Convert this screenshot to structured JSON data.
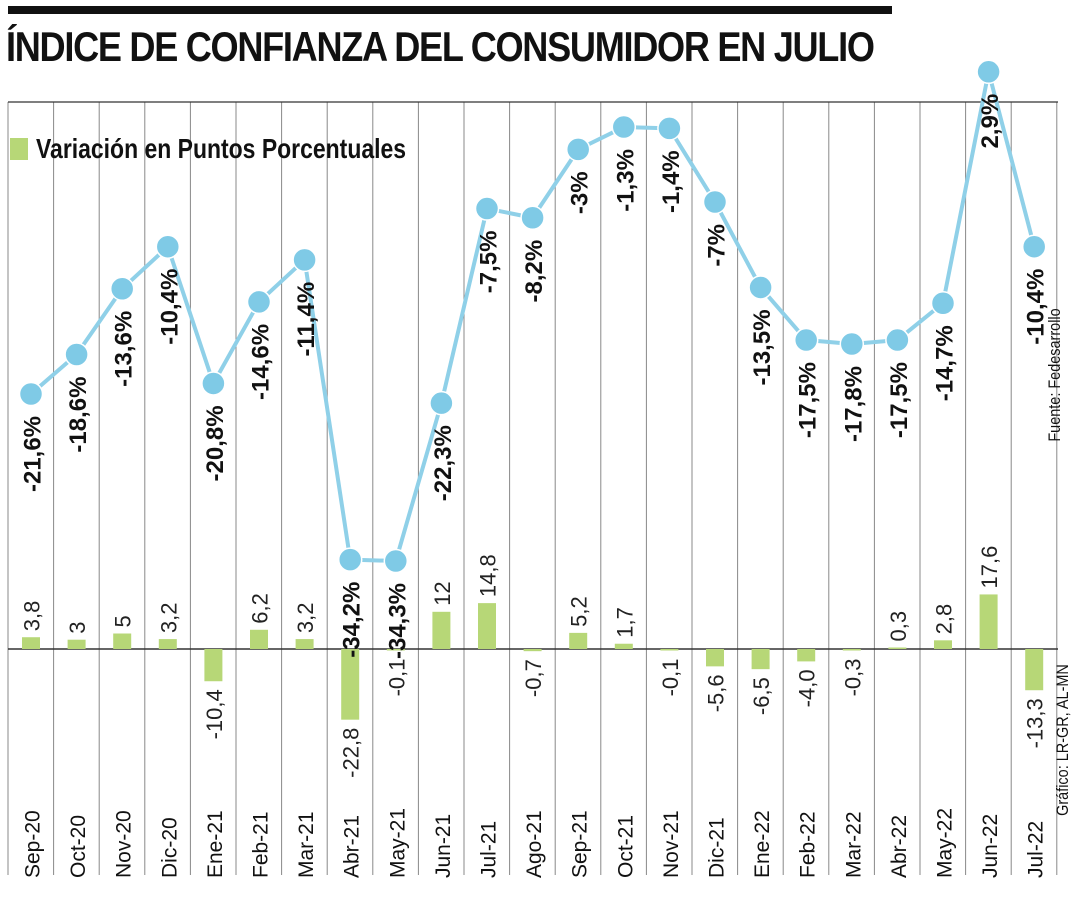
{
  "title": "ÍNDICE DE CONFIANZA DEL CONSUMIDOR EN JULIO",
  "legend": {
    "label": "Variación en Puntos Porcentuales",
    "color": "#b7d777"
  },
  "source": "Fuente: Fedesarrollo",
  "credit": "Gráfico: LR-GR, AL-MN",
  "colors": {
    "line": "#8fd0e8",
    "marker": "#7fcae6",
    "bar": "#b7d777",
    "grid": "#888888"
  },
  "chart_data": {
    "type": "line+bar",
    "title": "ÍNDICE DE CONFIANZA DEL CONSUMIDOR EN JULIO",
    "categories": [
      "Sep-20",
      "Oct-20",
      "Nov-20",
      "Dic-20",
      "Ene-21",
      "Feb-21",
      "Mar-21",
      "Abr-21",
      "May-21",
      "Jun-21",
      "Jul-21",
      "Ago-21",
      "Sep-21",
      "Oct-21",
      "Nov-21",
      "Dic-21",
      "Ene-22",
      "Feb-22",
      "Mar-22",
      "Abr-22",
      "May-22",
      "Jun-22",
      "Jul-22"
    ],
    "series": [
      {
        "name": "Índice de Confianza del Consumidor",
        "type": "line",
        "values": [
          -21.6,
          -18.6,
          -13.6,
          -10.4,
          -20.8,
          -14.6,
          -11.4,
          -34.2,
          -34.3,
          -22.3,
          -7.5,
          -8.2,
          -3,
          -1.3,
          -1.4,
          -7,
          -13.5,
          -17.5,
          -17.8,
          -17.5,
          -14.7,
          2.9,
          -10.4
        ],
        "labels": [
          "-21,6%",
          "-18,6%",
          "-13,6%",
          "-10,4%",
          "-20,8%",
          "-14,6%",
          "-11,4%",
          "-34,2%",
          "-34,3%",
          "-22,3%",
          "-7,5%",
          "-8,2%",
          "-3%",
          "-1,3%",
          "-1,4%",
          "-7%",
          "-13,5%",
          "-17,5%",
          "-17,8%",
          "-17,5%",
          "-14,7%",
          "2,9%",
          "-10,4%"
        ]
      },
      {
        "name": "Variación en Puntos Porcentuales",
        "type": "bar",
        "values": [
          3.8,
          3,
          5,
          3.2,
          -10.4,
          6.2,
          3.2,
          -22.8,
          -0.1,
          12,
          14.8,
          -0.7,
          5.2,
          1.7,
          -0.1,
          -5.6,
          -6.5,
          -4.0,
          -0.3,
          0.3,
          2.8,
          17.6,
          -13.3
        ],
        "labels": [
          "3,8",
          "3",
          "5",
          "3,2",
          "-10,4",
          "6,2",
          "3,2",
          "-22,8",
          "-0,1",
          "12",
          "14,8",
          "-0,7",
          "5,2",
          "1,7",
          "-0,1",
          "-5,6",
          "-6,5",
          "-4,0",
          "-0,3",
          "0,3",
          "2,8",
          "17,6",
          "-13,3"
        ]
      }
    ]
  }
}
